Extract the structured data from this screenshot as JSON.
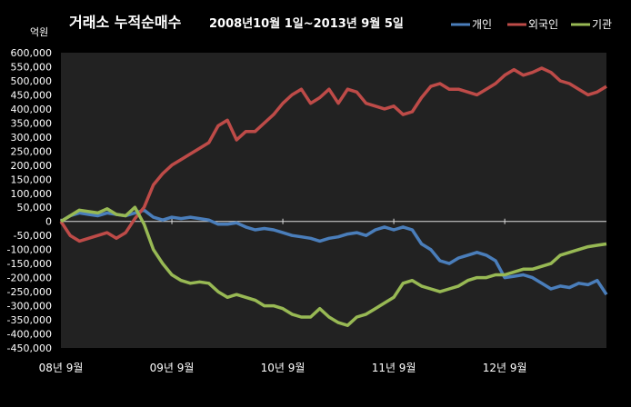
{
  "chart_data": {
    "type": "line",
    "title": "거래소 누적순매수",
    "subtitle": "2008년10월 1일~2013년 9월 5일",
    "ylabel": "억원",
    "ylim": [
      -450000,
      600000
    ],
    "yticks": [
      600000,
      550000,
      500000,
      450000,
      400000,
      350000,
      300000,
      250000,
      200000,
      150000,
      100000,
      50000,
      0,
      -50000,
      -100000,
      -150000,
      -200000,
      -250000,
      -300000,
      -350000,
      -400000,
      -450000
    ],
    "ytick_labels": [
      "600,000",
      "550,000",
      "500,000",
      "450,000",
      "400,000",
      "350,000",
      "300,000",
      "250,000",
      "200,000",
      "150,000",
      "100,000",
      "50,000",
      "0",
      "-50,000",
      "-100,000",
      "-150,000",
      "-200,000",
      "-250,000",
      "-300,000",
      "-350,000",
      "-400,000",
      "-450,000"
    ],
    "x_tick_labels": [
      "08년 9월",
      "09년 9월",
      "10년 9월",
      "11년 9월",
      "12년 9월"
    ],
    "x_tick_positions": [
      0,
      12,
      24,
      36,
      48
    ],
    "xlim": [
      0,
      59
    ],
    "grid": false,
    "legend_position": "top-right",
    "series": [
      {
        "name": "개인",
        "color": "#4a7ebb",
        "values": [
          0,
          20000,
          30000,
          25000,
          20000,
          30000,
          25000,
          20000,
          30000,
          40000,
          15000,
          5000,
          15000,
          10000,
          15000,
          10000,
          5000,
          -10000,
          -10000,
          -5000,
          -20000,
          -30000,
          -25000,
          -30000,
          -40000,
          -50000,
          -55000,
          -60000,
          -70000,
          -60000,
          -55000,
          -45000,
          -40000,
          -50000,
          -30000,
          -20000,
          -30000,
          -20000,
          -30000,
          -80000,
          -100000,
          -140000,
          -150000,
          -130000,
          -120000,
          -110000,
          -120000,
          -140000,
          -200000,
          -195000,
          -190000,
          -200000,
          -220000,
          -240000,
          -230000,
          -235000,
          -220000,
          -225000,
          -210000,
          -260000
        ]
      },
      {
        "name": "외국인",
        "color": "#be4b48",
        "values": [
          0,
          -50000,
          -70000,
          -60000,
          -50000,
          -40000,
          -60000,
          -40000,
          10000,
          50000,
          130000,
          170000,
          200000,
          220000,
          240000,
          260000,
          280000,
          340000,
          360000,
          290000,
          320000,
          320000,
          350000,
          380000,
          420000,
          450000,
          470000,
          420000,
          440000,
          470000,
          420000,
          470000,
          460000,
          420000,
          410000,
          400000,
          410000,
          380000,
          390000,
          440000,
          480000,
          490000,
          470000,
          470000,
          460000,
          450000,
          470000,
          490000,
          520000,
          540000,
          520000,
          530000,
          545000,
          530000,
          500000,
          490000,
          470000,
          450000,
          460000,
          480000
        ]
      },
      {
        "name": "기관",
        "color": "#98b954",
        "values": [
          0,
          20000,
          40000,
          35000,
          30000,
          45000,
          25000,
          20000,
          50000,
          -10000,
          -100000,
          -150000,
          -190000,
          -210000,
          -220000,
          -215000,
          -220000,
          -250000,
          -270000,
          -260000,
          -270000,
          -280000,
          -300000,
          -300000,
          -310000,
          -330000,
          -340000,
          -340000,
          -310000,
          -340000,
          -360000,
          -370000,
          -340000,
          -330000,
          -310000,
          -290000,
          -270000,
          -220000,
          -210000,
          -230000,
          -240000,
          -250000,
          -240000,
          -230000,
          -210000,
          -200000,
          -200000,
          -190000,
          -190000,
          -180000,
          -170000,
          -170000,
          -160000,
          -150000,
          -120000,
          -110000,
          -100000,
          -90000,
          -85000,
          -80000
        ]
      }
    ]
  }
}
